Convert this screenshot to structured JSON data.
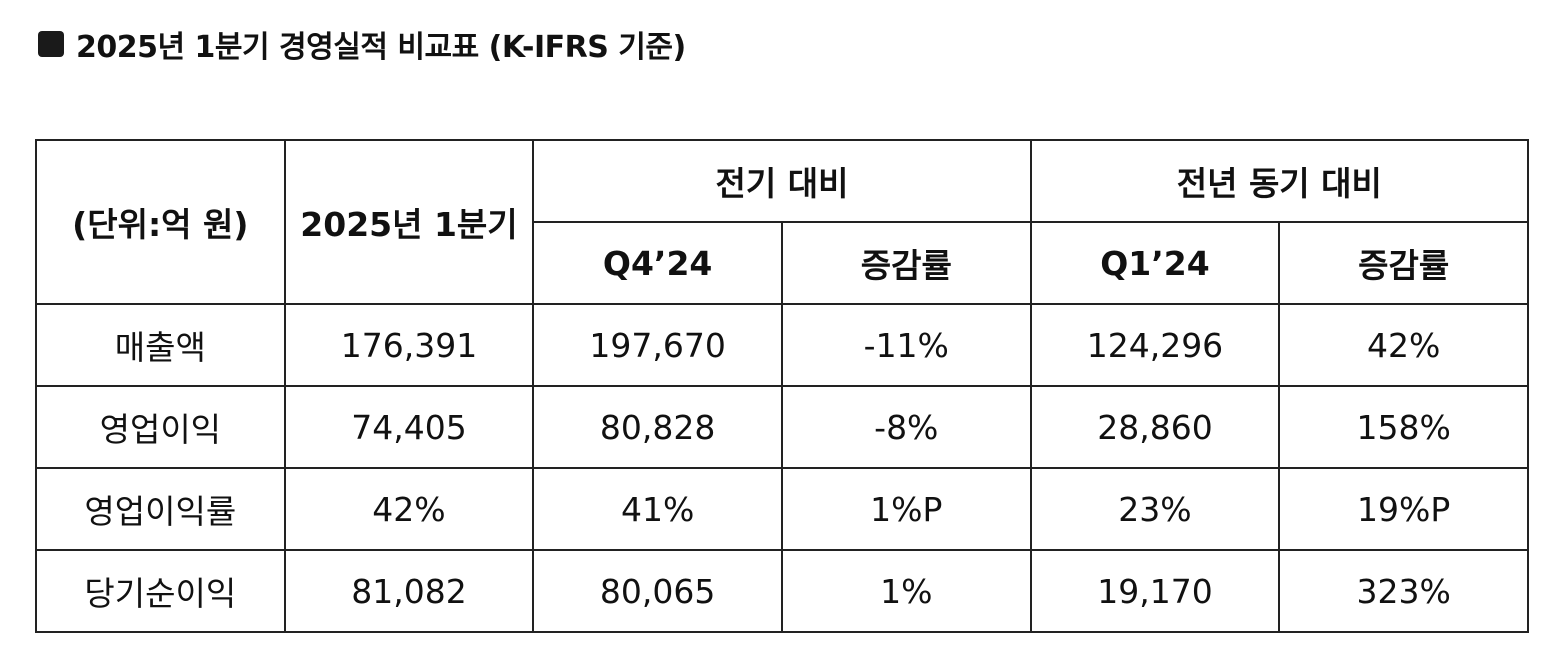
{
  "header": {
    "title": "2025년 1분기 경영실적 비교표 (K-IFRS 기준)"
  },
  "table": {
    "header_rows": [
      [
        "(단위:억 원)",
        "2025년 1분기",
        "전기 대비",
        "전년 동기 대비"
      ],
      [
        "Q4’24",
        "증감률",
        "Q1’24",
        "증감률"
      ]
    ],
    "rows": [
      [
        "매출액",
        "176,391",
        "197,670",
        "-11%",
        "124,296",
        "42%"
      ],
      [
        "영업이익",
        "74,405",
        "80,828",
        "-8%",
        "28,860",
        "158%"
      ],
      [
        "영업이익률",
        "42%",
        "41%",
        "1%P",
        "23%",
        "19%P"
      ],
      [
        "당기순이익",
        "81,082",
        "80,065",
        "1%",
        "19,170",
        "323%"
      ]
    ]
  }
}
